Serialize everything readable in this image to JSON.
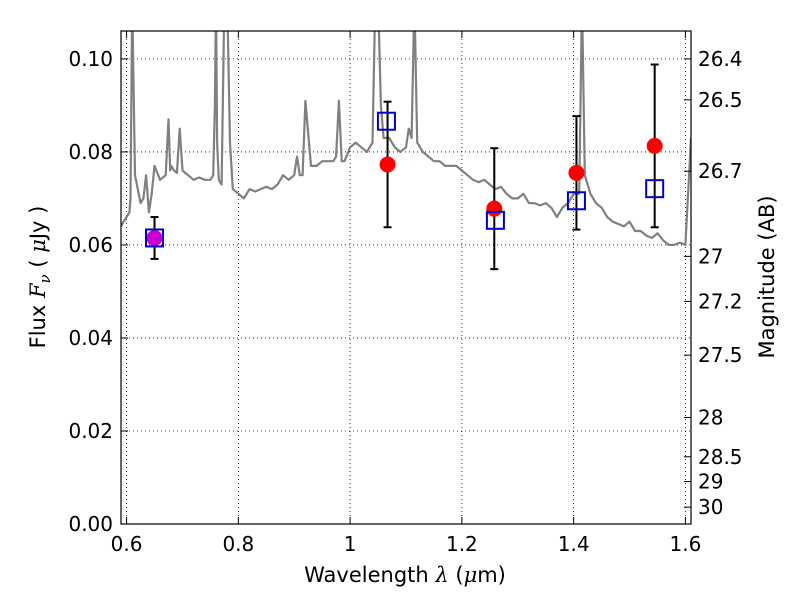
{
  "chart_data": {
    "type": "scatter",
    "title": "",
    "xlabel": "Wavelength  λ (μm)",
    "xlabel_parts": {
      "text": "Wavelength  ",
      "symbol": "λ",
      "unit_open": " (",
      "unit_mu": "μ",
      "unit_rest": "m)"
    },
    "ylabel": "Flux  Fν ( μJy )",
    "ylabel_parts": {
      "text": "Flux  ",
      "symbol": "F",
      "subscript": "ν",
      "unit_open": " ( ",
      "unit_mu": "μ",
      "unit_rest": "Jy )"
    },
    "y2label": "Magnitude (AB)",
    "xlim": [
      0.59,
      1.61
    ],
    "ylim": [
      0.0,
      0.106
    ],
    "grid": true,
    "x_ticks": [
      0.6,
      0.8,
      1.0,
      1.2,
      1.4,
      1.6
    ],
    "x_tick_labels": [
      "0.6",
      "0.8",
      "1",
      "1.2",
      "1.4",
      "1.6"
    ],
    "y_ticks": [
      0.0,
      0.02,
      0.04,
      0.06,
      0.08,
      0.1
    ],
    "y_tick_labels": [
      "0.00",
      "0.02",
      "0.04",
      "0.06",
      "0.08",
      "0.10"
    ],
    "y2_tick_labels": [
      "26.4",
      "26.5",
      "26.7",
      "27",
      "27.2",
      "27.5",
      "28",
      "28.5",
      "29",
      "30"
    ],
    "y2_tick_magnitudes": [
      26.4,
      26.5,
      26.7,
      27.0,
      27.2,
      27.5,
      28.0,
      28.5,
      29.0,
      30.0
    ],
    "colors": {
      "spectrum": "#808080",
      "observed": "#ff0000",
      "model": "#0000cc",
      "errorbar": "#000000",
      "overlap": "#cc00cc"
    },
    "series": [
      {
        "type": "line",
        "x": [
          0.59,
          0.597,
          0.6,
          0.605,
          0.607,
          0.61,
          0.615,
          0.62,
          0.625,
          0.63,
          0.635,
          0.64,
          0.645,
          0.65,
          0.66,
          0.67,
          0.675,
          0.678,
          0.68,
          0.685,
          0.69,
          0.695,
          0.7,
          0.705,
          0.71,
          0.72,
          0.73,
          0.74,
          0.75,
          0.755,
          0.758,
          0.76,
          0.762,
          0.765,
          0.77,
          0.775,
          0.78,
          0.785,
          0.79,
          0.8,
          0.81,
          0.82,
          0.83,
          0.84,
          0.85,
          0.86,
          0.87,
          0.88,
          0.89,
          0.9,
          0.905,
          0.91,
          0.915,
          0.92,
          0.93,
          0.94,
          0.95,
          0.96,
          0.97,
          0.975,
          0.98,
          0.985,
          0.99,
          1.0,
          1.01,
          1.02,
          1.03,
          1.04,
          1.045,
          1.05,
          1.055,
          1.06,
          1.065,
          1.07,
          1.08,
          1.09,
          1.1,
          1.105,
          1.11,
          1.115,
          1.12,
          1.13,
          1.14,
          1.15,
          1.16,
          1.17,
          1.18,
          1.19,
          1.2,
          1.21,
          1.22,
          1.23,
          1.24,
          1.25,
          1.26,
          1.27,
          1.28,
          1.29,
          1.3,
          1.31,
          1.32,
          1.33,
          1.34,
          1.35,
          1.36,
          1.37,
          1.38,
          1.39,
          1.4,
          1.41,
          1.415,
          1.42,
          1.43,
          1.44,
          1.45,
          1.46,
          1.47,
          1.48,
          1.49,
          1.5,
          1.51,
          1.52,
          1.53,
          1.54,
          1.55,
          1.56,
          1.57,
          1.58,
          1.59,
          1.6,
          1.61
        ],
        "y": [
          0.064,
          0.0655,
          0.066,
          0.067,
          0.07,
          0.113,
          0.075,
          0.072,
          0.069,
          0.07,
          0.075,
          0.067,
          0.071,
          0.077,
          0.074,
          0.075,
          0.087,
          0.076,
          0.077,
          0.076,
          0.0755,
          0.085,
          0.076,
          0.0755,
          0.075,
          0.074,
          0.0745,
          0.074,
          0.074,
          0.075,
          0.09,
          0.113,
          0.082,
          0.074,
          0.073,
          0.113,
          0.113,
          0.082,
          0.072,
          0.071,
          0.07,
          0.072,
          0.0715,
          0.072,
          0.0725,
          0.072,
          0.073,
          0.075,
          0.074,
          0.075,
          0.079,
          0.075,
          0.075,
          0.091,
          0.077,
          0.077,
          0.078,
          0.078,
          0.078,
          0.079,
          0.091,
          0.078,
          0.078,
          0.081,
          0.082,
          0.081,
          0.08,
          0.082,
          0.113,
          0.113,
          0.09,
          0.083,
          0.083,
          0.083,
          0.081,
          0.08,
          0.081,
          0.085,
          0.083,
          0.113,
          0.082,
          0.08,
          0.079,
          0.078,
          0.078,
          0.077,
          0.077,
          0.077,
          0.076,
          0.075,
          0.074,
          0.0735,
          0.074,
          0.073,
          0.072,
          0.0725,
          0.071,
          0.07,
          0.07,
          0.071,
          0.069,
          0.069,
          0.0685,
          0.069,
          0.068,
          0.066,
          0.068,
          0.069,
          0.071,
          0.071,
          0.113,
          0.075,
          0.071,
          0.069,
          0.068,
          0.066,
          0.065,
          0.0645,
          0.064,
          0.065,
          0.063,
          0.063,
          0.062,
          0.0615,
          0.0625,
          0.061,
          0.06,
          0.06,
          0.0605,
          0.06,
          0.083
        ]
      },
      {
        "type": "scatter",
        "marker": "circle",
        "x": [
          0.65,
          1.067,
          1.258,
          1.405,
          1.545
        ],
        "y": [
          0.0615,
          0.0773,
          0.0678,
          0.0755,
          0.0813
        ],
        "yerr": [
          0.0045,
          0.0135,
          0.013,
          0.0122,
          0.0175
        ]
      },
      {
        "type": "scatter",
        "marker": "square",
        "x": [
          0.65,
          1.065,
          1.26,
          1.405,
          1.545
        ],
        "y": [
          0.0615,
          0.0866,
          0.0653,
          0.0695,
          0.0721
        ]
      }
    ]
  }
}
